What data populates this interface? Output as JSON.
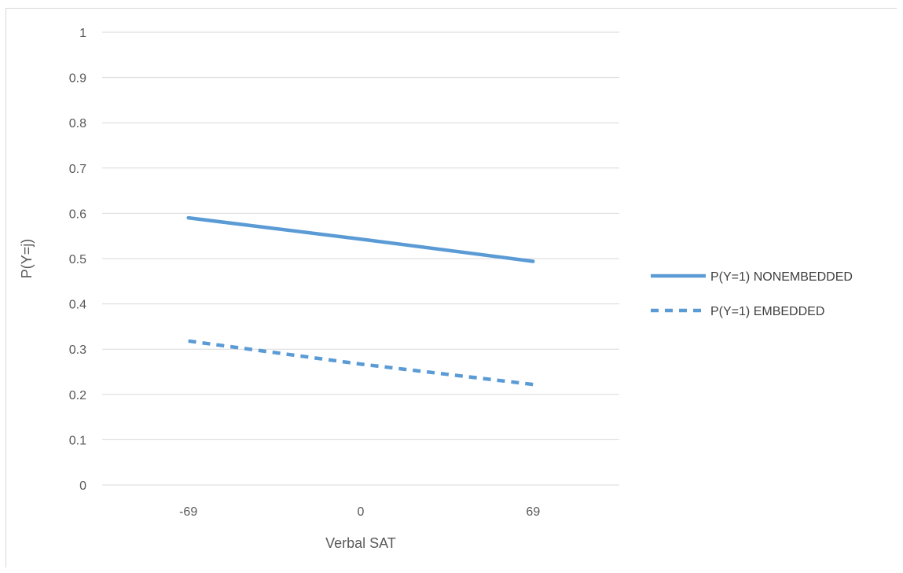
{
  "chart_data": {
    "type": "line",
    "categories": [
      "-69",
      "0",
      "69"
    ],
    "series": [
      {
        "name": "P(Y=1) NONEMBEDDED",
        "values": [
          0.59,
          0.543,
          0.494
        ],
        "color": "#5b9bd5",
        "dash": "solid"
      },
      {
        "name": "P(Y=1) EMBEDDED",
        "values": [
          0.318,
          0.267,
          0.222
        ],
        "color": "#5b9bd5",
        "dash": "dashed"
      }
    ],
    "xlabel": "Verbal SAT",
    "ylabel": "P(Y=j)",
    "ylim": [
      0,
      1
    ],
    "yticks": [
      "0",
      "0.1",
      "0.2",
      "0.3",
      "0.4",
      "0.5",
      "0.6",
      "0.7",
      "0.8",
      "0.9",
      "1"
    ],
    "grid": true,
    "legend": "right"
  }
}
